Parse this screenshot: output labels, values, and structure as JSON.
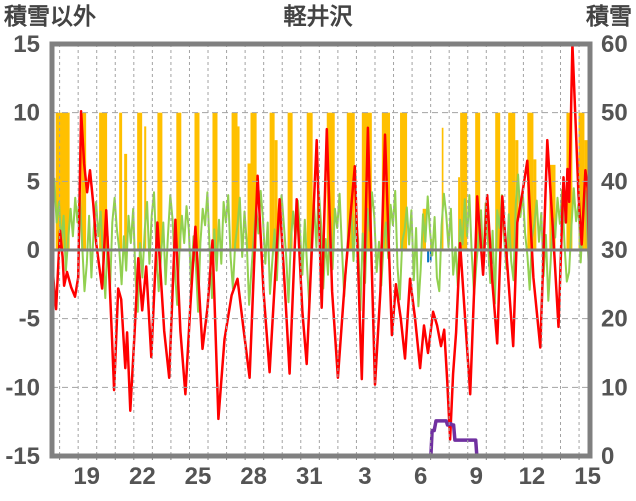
{
  "header": {
    "left_axis_title": "積雪以外",
    "chart_title": "軽井沢",
    "right_axis_title": "積雪"
  },
  "chart_data": {
    "type": "mixed",
    "title": "軽井沢",
    "x_unit": "date (Dec 17 - Jan 16, daily gridlines)",
    "x_axis": {
      "tick_labels": [
        "19",
        "22",
        "25",
        "28",
        "31",
        "3",
        "6",
        "9",
        "12",
        "15"
      ],
      "tick_ts": [
        1.87,
        4.87,
        7.87,
        10.87,
        13.87,
        16.87,
        19.87,
        22.87,
        25.87,
        28.87
      ],
      "t_min": 0,
      "t_max": 29.0,
      "first_day_boundary_t": 0.41,
      "num_day_boundaries": 29,
      "grid": "daily dashed vertical"
    },
    "left_axis": {
      "label": "積雪以外",
      "ticks": [
        15,
        10,
        5,
        0,
        -5,
        -10,
        -15
      ],
      "range": [
        -15,
        15
      ],
      "dashed_gridlines_at": [
        10,
        5,
        -5,
        -10
      ],
      "solid_zero_line": true
    },
    "right_axis": {
      "label": "積雪",
      "ticks": [
        60,
        50,
        40,
        30,
        20,
        10,
        0
      ],
      "range": [
        0,
        60
      ]
    },
    "series": [
      {
        "name": "red-line",
        "type": "line",
        "axis": "left",
        "color": "#FF0000",
        "width": 2.5,
        "points": [
          [
            0,
            -0.8
          ],
          [
            0.11,
            -2.6
          ],
          [
            0.22,
            -4.3
          ],
          [
            0.43,
            1.4
          ],
          [
            0.57,
            -0.5
          ],
          [
            0.65,
            -2.6
          ],
          [
            0.81,
            -1.6
          ],
          [
            1.03,
            -2.7
          ],
          [
            1.24,
            -3.4
          ],
          [
            1.41,
            -2.0
          ],
          [
            1.57,
            10.1
          ],
          [
            1.73,
            6.3
          ],
          [
            1.89,
            4.2
          ],
          [
            2.05,
            5.8
          ],
          [
            2.22,
            3.4
          ],
          [
            2.38,
            0.5
          ],
          [
            2.7,
            -2.8
          ],
          [
            2.92,
            2.9
          ],
          [
            3.08,
            -1.5
          ],
          [
            3.24,
            -6.6
          ],
          [
            3.35,
            -10.2
          ],
          [
            3.57,
            -2.8
          ],
          [
            3.73,
            -3.6
          ],
          [
            3.95,
            -8.6
          ],
          [
            4.05,
            -6.0
          ],
          [
            4.22,
            -11.7
          ],
          [
            4.45,
            -6.0
          ],
          [
            4.65,
            -0.6
          ],
          [
            4.86,
            -4.4
          ],
          [
            5.08,
            -1.2
          ],
          [
            5.35,
            -7.8
          ],
          [
            5.68,
            2.0
          ],
          [
            6.05,
            -5.9
          ],
          [
            6.32,
            -9.3
          ],
          [
            6.65,
            2.2
          ],
          [
            6.92,
            -5.9
          ],
          [
            7.19,
            -10.5
          ],
          [
            7.46,
            -4.0
          ],
          [
            7.73,
            1.7
          ],
          [
            8.11,
            -7.2
          ],
          [
            8.38,
            -4.2
          ],
          [
            8.65,
            0.7
          ],
          [
            8.97,
            -12.3
          ],
          [
            9.3,
            -6.5
          ],
          [
            9.68,
            -3.3
          ],
          [
            10.0,
            -2.1
          ],
          [
            10.3,
            -5.5
          ],
          [
            10.65,
            -9.3
          ],
          [
            11.08,
            5.4
          ],
          [
            11.4,
            -3.0
          ],
          [
            11.73,
            -8.9
          ],
          [
            12.27,
            3.7
          ],
          [
            12.6,
            -4.0
          ],
          [
            12.81,
            -9.0
          ],
          [
            13.19,
            3.7
          ],
          [
            13.5,
            -4.5
          ],
          [
            13.73,
            -8.3
          ],
          [
            14.27,
            8.0
          ],
          [
            14.54,
            -4.2
          ],
          [
            14.81,
            8.8
          ],
          [
            15.1,
            -3.0
          ],
          [
            15.41,
            -9.3
          ],
          [
            15.8,
            -2.0
          ],
          [
            16.32,
            6.1
          ],
          [
            16.7,
            -9.4
          ],
          [
            17.03,
            8.9
          ],
          [
            17.41,
            -9.8
          ],
          [
            17.7,
            -3.0
          ],
          [
            17.95,
            8.4
          ],
          [
            18.32,
            -6.2
          ],
          [
            18.54,
            -2.5
          ],
          [
            18.8,
            -5.0
          ],
          [
            19.03,
            -7.9
          ],
          [
            19.3,
            -2.1
          ],
          [
            19.57,
            -5.0
          ],
          [
            19.84,
            -8.6
          ],
          [
            20.05,
            -5.5
          ],
          [
            20.27,
            -7.5
          ],
          [
            20.54,
            -4.5
          ],
          [
            20.76,
            -5.5
          ],
          [
            20.97,
            -7.0
          ],
          [
            21.14,
            -5.8
          ],
          [
            21.3,
            -9.5
          ],
          [
            21.46,
            -13.8
          ],
          [
            21.62,
            -9.0
          ],
          [
            21.78,
            -6.0
          ],
          [
            22.0,
            0.5
          ],
          [
            22.22,
            -4.0
          ],
          [
            22.54,
            -10.5
          ],
          [
            22.75,
            -3.0
          ],
          [
            22.92,
            3.9
          ],
          [
            23.24,
            -1.8
          ],
          [
            23.46,
            4.0
          ],
          [
            23.73,
            -2.2
          ],
          [
            24.0,
            -6.8
          ],
          [
            24.27,
            3.9
          ],
          [
            24.59,
            -2.0
          ],
          [
            24.86,
            -7.0
          ],
          [
            25.08,
            2.0
          ],
          [
            25.35,
            4.1
          ],
          [
            25.62,
            6.5
          ],
          [
            25.95,
            -2.0
          ],
          [
            26.32,
            -7.1
          ],
          [
            26.7,
            8.0
          ],
          [
            27.0,
            1.5
          ],
          [
            27.3,
            -5.6
          ],
          [
            27.57,
            5.3
          ],
          [
            27.7,
            2.0
          ],
          [
            27.78,
            5.9
          ],
          [
            27.88,
            3.5
          ],
          [
            28.05,
            15.0
          ],
          [
            28.2,
            10.0
          ],
          [
            28.38,
            4.0
          ],
          [
            28.55,
            0.4
          ],
          [
            28.75,
            5.8
          ],
          [
            28.87,
            4.5
          ],
          [
            29.0,
            -4.5
          ]
        ]
      },
      {
        "name": "green-line",
        "type": "line",
        "axis": "left",
        "color": "#92D050",
        "width": 2,
        "samples_per_day": 8,
        "daily_values": [
          [
            2.7,
            5.2,
            2.0,
            3.5,
            0.5,
            2.5,
            -1.5,
            0.8
          ],
          [
            3.0,
            1.0,
            3.8,
            2.0,
            4.0,
            0.5,
            -3.0,
            -1.0
          ],
          [
            2.5,
            -2.0,
            1.5,
            3.5,
            1.0,
            2.8,
            -0.5,
            -3.5
          ],
          [
            1.0,
            -3.0,
            2.0,
            3.8,
            1.5,
            0.0,
            -2.5,
            1.0
          ],
          [
            -1.5,
            2.5,
            0.5,
            3.0,
            -2.0,
            -4.5,
            0.5,
            -2.0
          ],
          [
            1.5,
            3.5,
            -1.0,
            2.5,
            4.2,
            0.0,
            -3.0,
            -0.5
          ],
          [
            2.0,
            -2.5,
            1.0,
            4.0,
            2.2,
            -1.5,
            -4.0,
            0.0
          ],
          [
            2.5,
            0.5,
            3.2,
            1.5,
            -2.5,
            1.0,
            -1.0,
            -4.5
          ],
          [
            0.5,
            3.0,
            1.8,
            4.2,
            0.0,
            -3.5,
            1.5,
            -1.5
          ],
          [
            2.2,
            -1.0,
            3.5,
            2.0,
            4.0,
            -0.5,
            -2.8,
            0.5
          ],
          [
            1.8,
            3.8,
            -0.5,
            2.8,
            0.5,
            -4.0,
            -1.5,
            1.0
          ],
          [
            3.2,
            1.2,
            4.3,
            2.2,
            -1.0,
            2.0,
            -3.2,
            -0.8
          ],
          [
            1.5,
            -2.2,
            2.5,
            4.0,
            1.8,
            -0.5,
            -3.8,
            0.8
          ],
          [
            2.8,
            0.8,
            3.6,
            1.2,
            -1.8,
            2.2,
            -1.2,
            -4.2
          ],
          [
            1.2,
            3.4,
            0.2,
            4.4,
            2.0,
            -2.8,
            0.8,
            -1.8
          ],
          [
            2.4,
            -1.4,
            3.0,
            1.6,
            4.1,
            0.2,
            -3.4,
            -0.6
          ],
          [
            1.6,
            3.2,
            -0.8,
            2.6,
            0.8,
            -4.4,
            1.2,
            -2.4
          ],
          [
            3.0,
            1.4,
            4.2,
            2.4,
            -1.6,
            0.6,
            -2.6,
            0.4
          ],
          [
            2.0,
            -0.6,
            3.3,
            1.8,
            4.3,
            -1.2,
            -3.6,
            0.6
          ],
          [
            1.4,
            3.1,
            0.4,
            2.9,
            -2.2,
            1.6,
            -4.1,
            -1.4
          ],
          [
            2.6,
            0.6,
            3.9,
            1.4,
            -0.4,
            2.4,
            -2.0,
            -3.0
          ],
          [
            1.8,
            4.1,
            2.6,
            0.2,
            3.0,
            -1.8,
            0.2,
            -2.6
          ],
          [
            2.2,
            0.4,
            3.7,
            1.0,
            4.0,
            -0.2,
            -3.3,
            -1.0
          ],
          [
            1.0,
            2.9,
            -1.2,
            3.4,
            0.6,
            -2.4,
            1.4,
            -3.9
          ],
          [
            2.9,
            1.6,
            4.0,
            0.8,
            -1.4,
            2.6,
            -0.8,
            -2.2
          ],
          [
            3.4,
            5.5,
            2.4,
            4.2,
            1.2,
            -0.4,
            -2.9,
            0.9
          ],
          [
            1.9,
            3.6,
            0.6,
            2.7,
            -1.9,
            1.1,
            -3.7,
            -0.9
          ],
          [
            2.3,
            0.9,
            3.8,
            1.9,
            4.4,
            0.4,
            -2.3,
            -1.6
          ],
          [
            1.7,
            4.5,
            2.1,
            3.3,
            -0.9,
            2.5,
            4.3,
            0.5
          ],
          [
            -3.3,
            -4.0,
            -3.5,
            -4.2,
            -3.0,
            -4.1,
            -3.8,
            -4.0
          ]
        ]
      },
      {
        "name": "orange-bars",
        "type": "bar",
        "axis": "left",
        "color": "#FFC000",
        "segments_t0_t1_h": [
          [
            0.2,
            0.95,
            10
          ],
          [
            1.57,
            1.84,
            10
          ],
          [
            2.54,
            2.97,
            10
          ],
          [
            3.62,
            3.78,
            10
          ],
          [
            3.89,
            4.05,
            7
          ],
          [
            4.59,
            4.86,
            10
          ],
          [
            4.97,
            5.08,
            9
          ],
          [
            5.68,
            5.95,
            10
          ],
          [
            6.7,
            6.97,
            10
          ],
          [
            7.68,
            7.95,
            10
          ],
          [
            8.65,
            8.92,
            10
          ],
          [
            9.68,
            10.0,
            10
          ],
          [
            10.0,
            10.11,
            9
          ],
          [
            10.54,
            10.7,
            6.3
          ],
          [
            10.7,
            11.03,
            10
          ],
          [
            11.73,
            12.0,
            10
          ],
          [
            12.0,
            12.16,
            8
          ],
          [
            12.7,
            12.97,
            10
          ],
          [
            13.73,
            14.05,
            10
          ],
          [
            14.81,
            15.24,
            10
          ],
          [
            15.89,
            16.32,
            10
          ],
          [
            16.7,
            17.24,
            10
          ],
          [
            17.78,
            18.22,
            10
          ],
          [
            18.76,
            19.14,
            10
          ],
          [
            19.98,
            20.16,
            3
          ],
          [
            20.38,
            20.49,
            0.8
          ],
          [
            21.01,
            21.1,
            8.9
          ],
          [
            21.89,
            22.0,
            5.3
          ],
          [
            22.0,
            22.38,
            10
          ],
          [
            22.81,
            23.08,
            10
          ],
          [
            23.89,
            24.16,
            10
          ],
          [
            24.59,
            24.97,
            10
          ],
          [
            24.97,
            25.14,
            8
          ],
          [
            25.62,
            25.95,
            10
          ],
          [
            25.95,
            26.11,
            6.6
          ],
          [
            26.81,
            27.14,
            6.2
          ],
          [
            27.73,
            28.05,
            10
          ],
          [
            28.38,
            28.7,
            10
          ],
          [
            28.7,
            28.92,
            8
          ]
        ]
      },
      {
        "name": "blue-bars",
        "type": "bar",
        "axis": "left",
        "color": "#0070C0",
        "segments_t0_t1_h": [
          [
            20.22,
            20.32,
            -0.9
          ],
          [
            20.36,
            20.46,
            -0.85
          ],
          [
            23.5,
            23.62,
            -1.2
          ],
          [
            23.66,
            23.77,
            -1.0
          ]
        ]
      },
      {
        "name": "purple-line",
        "type": "line",
        "axis": "right",
        "color": "#7030A0",
        "width": 3.5,
        "points": [
          [
            0,
            0
          ],
          [
            20.42,
            0
          ],
          [
            20.49,
            4.0
          ],
          [
            20.6,
            4.0
          ],
          [
            20.7,
            5.4
          ],
          [
            21.25,
            5.4
          ],
          [
            21.32,
            4.8
          ],
          [
            21.5,
            5.0
          ],
          [
            21.56,
            4.8
          ],
          [
            21.65,
            4.8
          ],
          [
            21.72,
            2.6
          ],
          [
            22.84,
            2.6
          ],
          [
            22.91,
            0
          ],
          [
            29.0,
            0
          ]
        ]
      }
    ],
    "style": {
      "frame_color": "#808080",
      "gridline_color": "#a3a3a3",
      "zero_line_color": "#808080",
      "label_color": "#545454",
      "background": "#ffffff"
    }
  }
}
